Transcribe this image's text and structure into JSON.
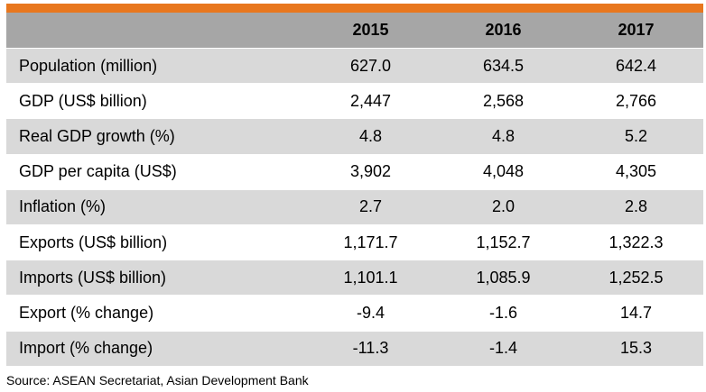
{
  "table": {
    "header": {
      "label": "",
      "years": [
        "2015",
        "2016",
        "2017"
      ]
    },
    "rows": [
      {
        "label": "Population (million)",
        "values": [
          "627.0",
          "634.5",
          "642.4"
        ]
      },
      {
        "label": "GDP (US$ billion)",
        "values": [
          "2,447",
          "2,568",
          "2,766"
        ]
      },
      {
        "label": "Real GDP growth (%)",
        "values": [
          "4.8",
          "4.8",
          "5.2"
        ]
      },
      {
        "label": "GDP per capita (US$)",
        "values": [
          "3,902",
          "4,048",
          "4,305"
        ]
      },
      {
        "label": "Inflation (%)",
        "values": [
          "2.7",
          "2.0",
          "2.8"
        ]
      },
      {
        "label": "Exports (US$ billion)",
        "values": [
          "1,171.7",
          "1,152.7",
          "1,322.3"
        ]
      },
      {
        "label": "Imports (US$ billion)",
        "values": [
          "1,101.1",
          "1,085.9",
          "1,252.5"
        ]
      },
      {
        "label": "Export (% change)",
        "values": [
          "-9.4",
          "-1.6",
          "14.7"
        ]
      },
      {
        "label": "Import (% change)",
        "values": [
          "-11.3",
          "-1.4",
          "15.3"
        ]
      }
    ]
  },
  "source": "Source: ASEAN Secretariat, Asian Development Bank",
  "colors": {
    "accent_bar": "#e8771e",
    "header_bg": "#a6a6a6",
    "shaded_row": "#d9d9d9"
  }
}
